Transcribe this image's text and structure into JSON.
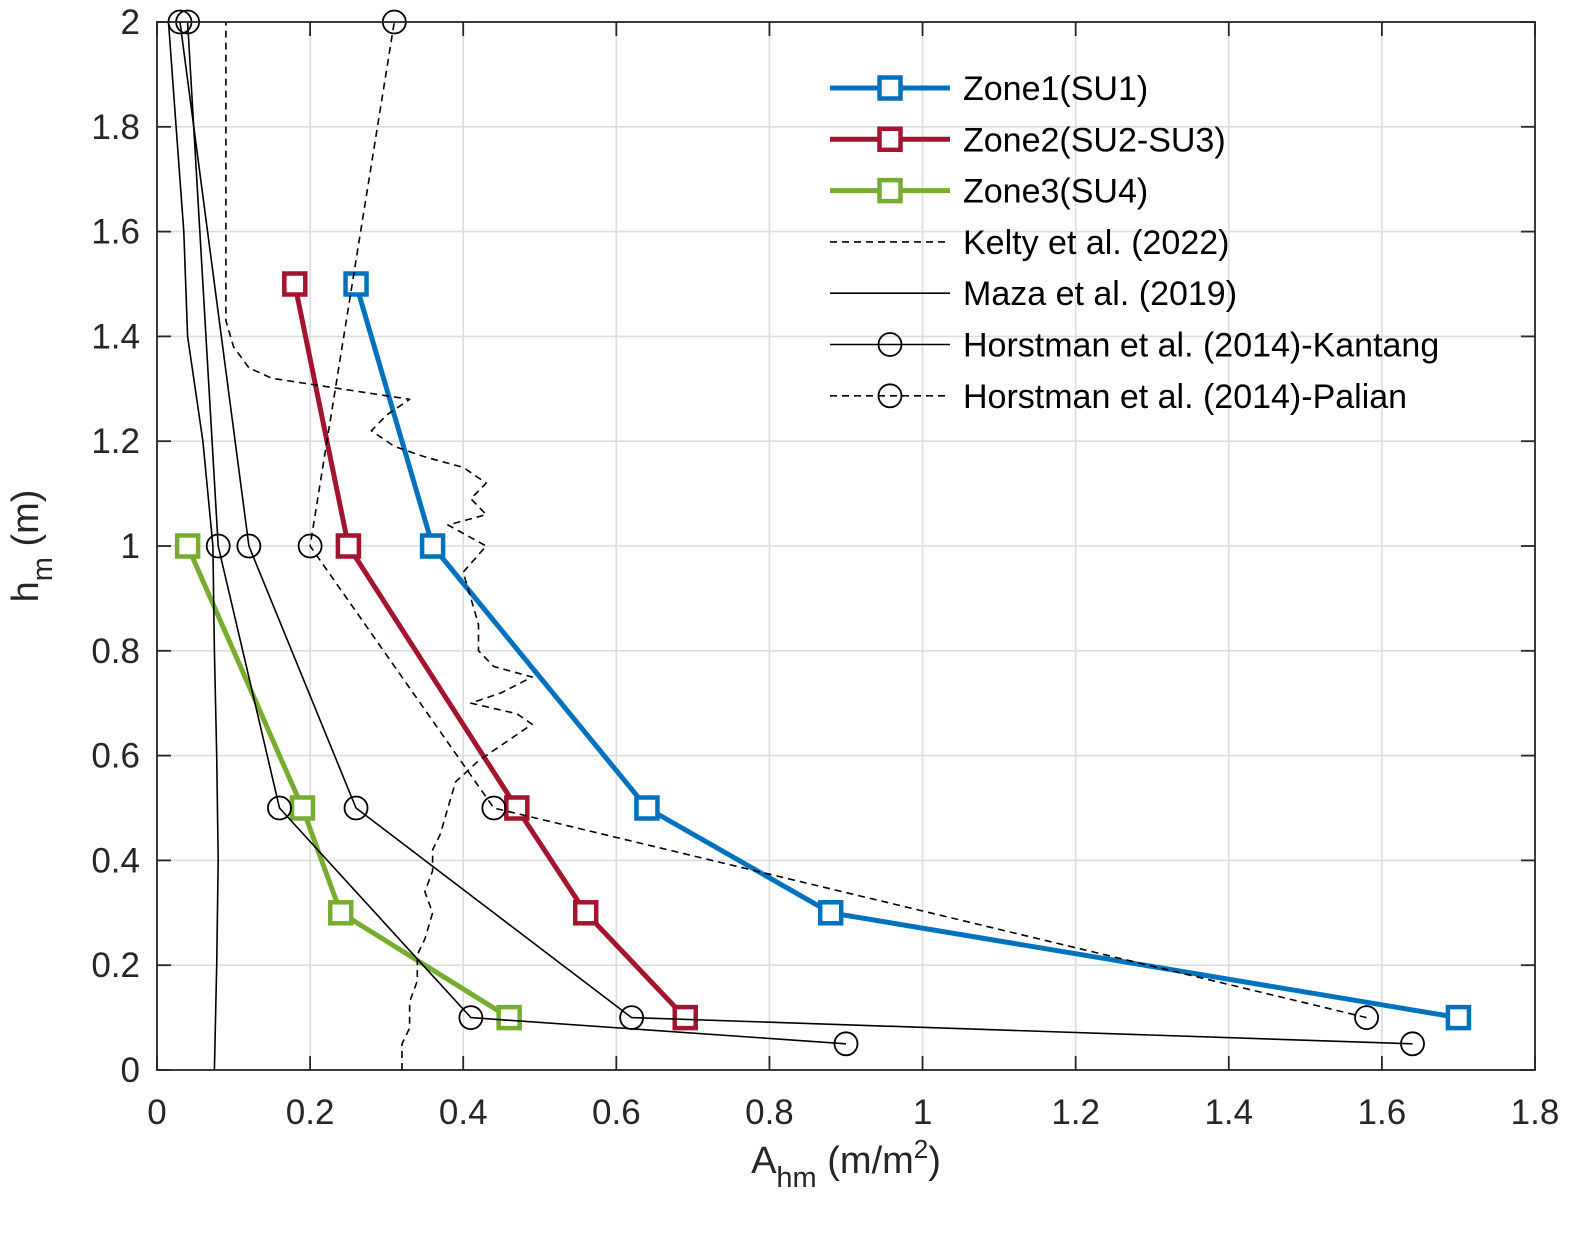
{
  "chart_data": {
    "type": "line",
    "xlabel": "A",
    "xlabel_sub": "hm",
    "xlabel_unit_prefix": " (m/m",
    "xlabel_unit_sup": "2",
    "xlabel_unit_suffix": ")",
    "ylabel": "h",
    "ylabel_sub": "m",
    "ylabel_unit": " (m)",
    "xlim": [
      0,
      1.8
    ],
    "ylim": [
      0,
      2
    ],
    "xticks": [
      0,
      0.2,
      0.4,
      0.6,
      0.8,
      1,
      1.2,
      1.4,
      1.6,
      1.8
    ],
    "xtick_labels": [
      "0",
      "0.2",
      "0.4",
      "0.6",
      "0.8",
      "1",
      "1.2",
      "1.4",
      "1.6",
      "1.8"
    ],
    "yticks": [
      0,
      0.2,
      0.4,
      0.6,
      0.8,
      1,
      1.2,
      1.4,
      1.6,
      1.8,
      2
    ],
    "ytick_labels": [
      "0",
      "0.2",
      "0.4",
      "0.6",
      "0.8",
      "1",
      "1.2",
      "1.4",
      "1.6",
      "1.8",
      "2"
    ],
    "grid": true,
    "legend_position": "top-right",
    "series": [
      {
        "name": "Zone1(SU1)",
        "key": "zone1",
        "color": "#0072BD",
        "style": "solid",
        "marker": "square",
        "weight": "bold",
        "points": [
          [
            1.7,
            0.1
          ],
          [
            0.88,
            0.3
          ],
          [
            0.64,
            0.5
          ],
          [
            0.36,
            1.0
          ],
          [
            0.26,
            1.5
          ]
        ]
      },
      {
        "name": "Zone2(SU2-SU3)",
        "key": "zone2",
        "color": "#A2142F",
        "style": "solid",
        "marker": "square",
        "weight": "bold",
        "points": [
          [
            0.69,
            0.1
          ],
          [
            0.56,
            0.3
          ],
          [
            0.47,
            0.5
          ],
          [
            0.25,
            1.0
          ],
          [
            0.18,
            1.5
          ]
        ]
      },
      {
        "name": "Zone3(SU4)",
        "key": "zone3",
        "color": "#77AC30",
        "style": "solid",
        "marker": "square",
        "weight": "bold",
        "points": [
          [
            0.46,
            0.1
          ],
          [
            0.24,
            0.3
          ],
          [
            0.19,
            0.5
          ],
          [
            0.04,
            1.0
          ]
        ]
      },
      {
        "name": "Kelty et al. (2022)",
        "key": "kelty",
        "color": "#000000",
        "style": "dashed",
        "marker": "none",
        "weight": "thin",
        "points": [
          [
            0.32,
            0.0
          ],
          [
            0.32,
            0.05
          ],
          [
            0.33,
            0.08
          ],
          [
            0.33,
            0.13
          ],
          [
            0.34,
            0.17
          ],
          [
            0.34,
            0.22
          ],
          [
            0.35,
            0.25
          ],
          [
            0.36,
            0.3
          ],
          [
            0.35,
            0.34
          ],
          [
            0.36,
            0.38
          ],
          [
            0.36,
            0.42
          ],
          [
            0.37,
            0.45
          ],
          [
            0.38,
            0.5
          ],
          [
            0.39,
            0.55
          ],
          [
            0.42,
            0.59
          ],
          [
            0.46,
            0.63
          ],
          [
            0.49,
            0.66
          ],
          [
            0.47,
            0.68
          ],
          [
            0.41,
            0.7
          ],
          [
            0.45,
            0.72
          ],
          [
            0.49,
            0.75
          ],
          [
            0.44,
            0.77
          ],
          [
            0.42,
            0.8
          ],
          [
            0.42,
            0.85
          ],
          [
            0.41,
            0.9
          ],
          [
            0.4,
            0.95
          ],
          [
            0.43,
            1.0
          ],
          [
            0.38,
            1.04
          ],
          [
            0.43,
            1.06
          ],
          [
            0.41,
            1.09
          ],
          [
            0.43,
            1.12
          ],
          [
            0.4,
            1.15
          ],
          [
            0.35,
            1.17
          ],
          [
            0.31,
            1.19
          ],
          [
            0.28,
            1.22
          ],
          [
            0.3,
            1.25
          ],
          [
            0.33,
            1.28
          ],
          [
            0.24,
            1.3
          ],
          [
            0.15,
            1.32
          ],
          [
            0.12,
            1.34
          ],
          [
            0.1,
            1.38
          ],
          [
            0.09,
            1.43
          ],
          [
            0.09,
            1.6
          ],
          [
            0.09,
            1.8
          ],
          [
            0.09,
            2.0
          ]
        ]
      },
      {
        "name": "Maza et al. (2019)",
        "key": "maza",
        "color": "#000000",
        "style": "solid",
        "marker": "none",
        "weight": "thin",
        "points": [
          [
            0.075,
            0.0
          ],
          [
            0.078,
            0.2
          ],
          [
            0.08,
            0.4
          ],
          [
            0.078,
            0.6
          ],
          [
            0.075,
            0.8
          ],
          [
            0.073,
            1.0
          ],
          [
            0.06,
            1.2
          ],
          [
            0.04,
            1.4
          ],
          [
            0.035,
            1.6
          ],
          [
            0.025,
            1.8
          ],
          [
            0.015,
            2.0
          ]
        ]
      },
      {
        "name": "Horstman et al. (2014)-Kantang",
        "key": "kantang",
        "color": "#000000",
        "style": "solid",
        "marker": "circle",
        "weight": "thin",
        "lines": [
          [
            [
              0.9,
              0.05
            ],
            [
              0.41,
              0.1
            ],
            [
              0.16,
              0.5
            ],
            [
              0.08,
              1.0
            ],
            [
              0.04,
              2.0
            ]
          ],
          [
            [
              1.64,
              0.05
            ],
            [
              0.62,
              0.1
            ],
            [
              0.26,
              0.5
            ],
            [
              0.12,
              1.0
            ],
            [
              0.03,
              2.0
            ]
          ]
        ]
      },
      {
        "name": "Horstman et al. (2014)-Palian",
        "key": "palian",
        "color": "#000000",
        "style": "dashed",
        "marker": "circle",
        "weight": "thin",
        "lines": [
          [
            [
              1.58,
              0.1
            ],
            [
              0.44,
              0.5
            ],
            [
              0.2,
              1.0
            ],
            [
              0.31,
              2.0
            ]
          ]
        ]
      }
    ]
  }
}
